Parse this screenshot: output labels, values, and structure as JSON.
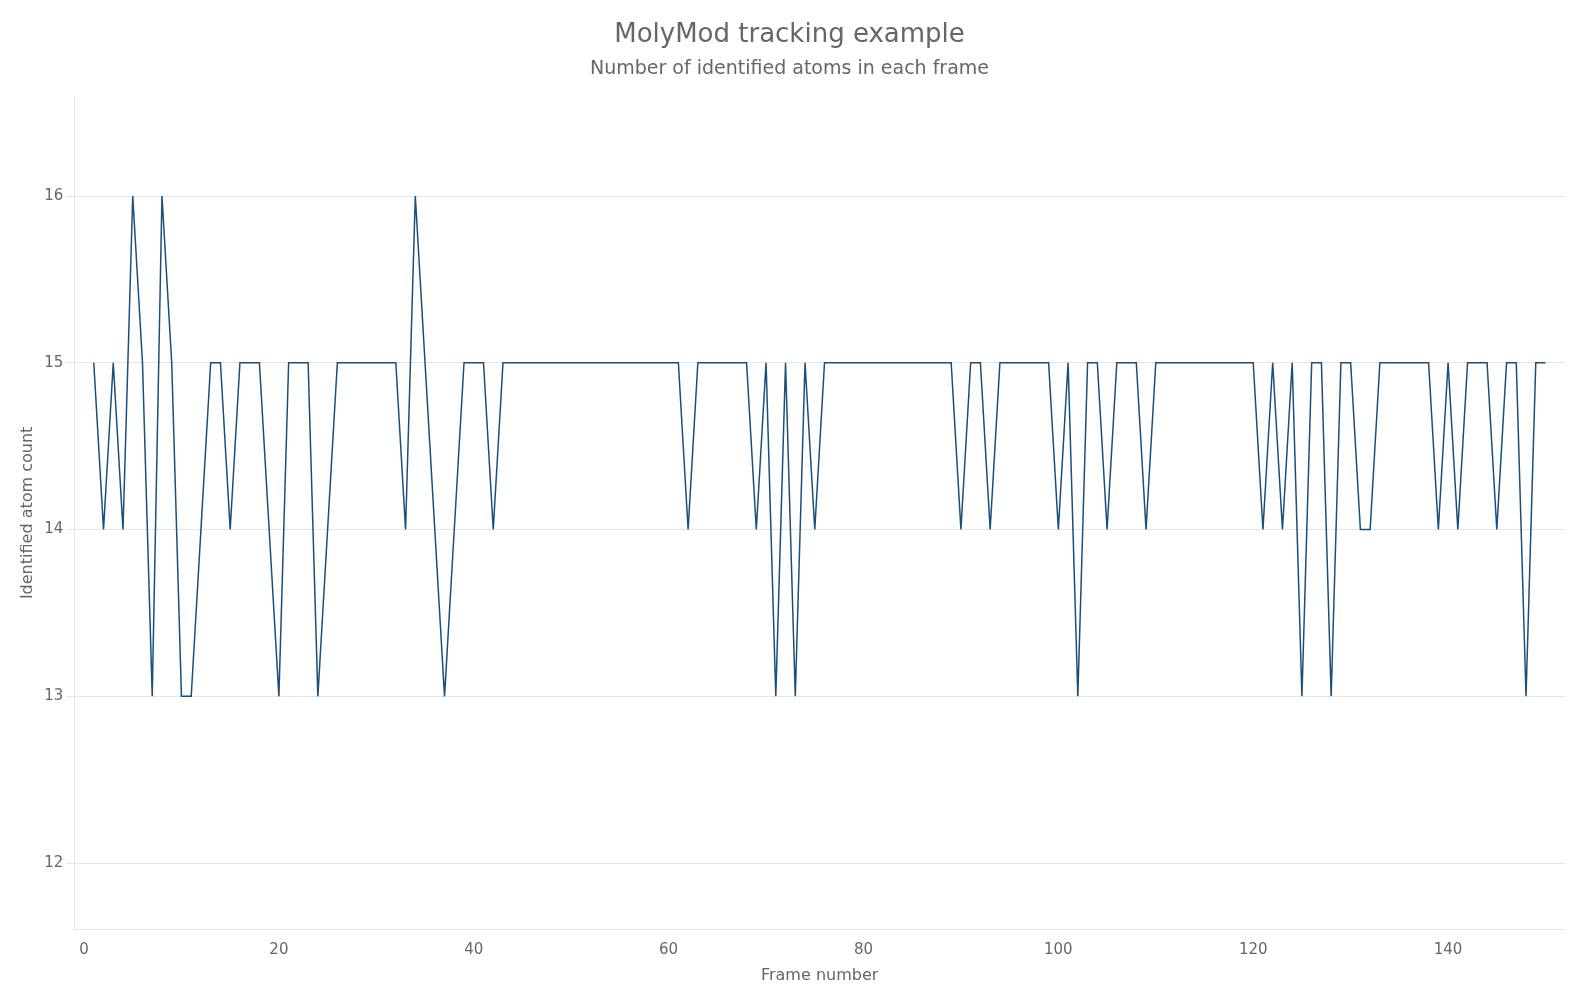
{
  "chart_data": {
    "type": "line",
    "title": "MolyMod tracking example",
    "subtitle": "Number of identified atoms in each frame",
    "xlabel": "Frame number",
    "ylabel": "Identified atom count",
    "color": "#1a4f7a",
    "grid": "y",
    "xlim": [
      -1,
      152
    ],
    "ylim": [
      11.6,
      16.6
    ],
    "xticks": [
      0,
      20,
      40,
      60,
      80,
      100,
      120,
      140
    ],
    "yticks": [
      12,
      13,
      14,
      15,
      16
    ],
    "x": [
      1,
      2,
      3,
      4,
      5,
      6,
      7,
      8,
      9,
      10,
      11,
      12,
      13,
      14,
      15,
      16,
      17,
      18,
      19,
      20,
      21,
      22,
      23,
      24,
      25,
      26,
      27,
      28,
      29,
      30,
      31,
      32,
      33,
      34,
      35,
      36,
      37,
      38,
      39,
      40,
      41,
      42,
      43,
      44,
      45,
      46,
      47,
      48,
      49,
      50,
      51,
      52,
      53,
      54,
      55,
      56,
      57,
      58,
      59,
      60,
      61,
      62,
      63,
      64,
      65,
      66,
      67,
      68,
      69,
      70,
      71,
      72,
      73,
      74,
      75,
      76,
      77,
      78,
      79,
      80,
      81,
      82,
      83,
      84,
      85,
      86,
      87,
      88,
      89,
      90,
      91,
      92,
      93,
      94,
      95,
      96,
      97,
      98,
      99,
      100,
      101,
      102,
      103,
      104,
      105,
      106,
      107,
      108,
      109,
      110,
      111,
      112,
      113,
      114,
      115,
      116,
      117,
      118,
      119,
      120,
      121,
      122,
      123,
      124,
      125,
      126,
      127,
      128,
      129,
      130,
      131,
      132,
      133,
      134,
      135,
      136,
      137,
      138,
      139,
      140,
      141,
      142,
      143,
      144,
      145,
      146,
      147,
      148,
      149,
      150
    ],
    "values": [
      15,
      14,
      15,
      14,
      16,
      15,
      13,
      16,
      15,
      13,
      13,
      14,
      15,
      15,
      14,
      15,
      15,
      15,
      14,
      13,
      15,
      15,
      15,
      13,
      14,
      15,
      15,
      15,
      15,
      15,
      15,
      15,
      14,
      16,
      15,
      14,
      13,
      14,
      15,
      15,
      15,
      14,
      15,
      15,
      15,
      15,
      15,
      15,
      15,
      15,
      15,
      15,
      15,
      15,
      15,
      15,
      15,
      15,
      15,
      15,
      15,
      14,
      15,
      15,
      15,
      15,
      15,
      15,
      14,
      15,
      13,
      15,
      13,
      15,
      14,
      15,
      15,
      15,
      15,
      15,
      15,
      15,
      15,
      15,
      15,
      15,
      15,
      15,
      15,
      14,
      15,
      15,
      14,
      15,
      15,
      15,
      15,
      15,
      15,
      14,
      15,
      13,
      15,
      15,
      14,
      15,
      15,
      15,
      14,
      15,
      15,
      15,
      15,
      15,
      15,
      15,
      15,
      15,
      15,
      15,
      14,
      15,
      14,
      15,
      13,
      15,
      15,
      13,
      15,
      15,
      14,
      14,
      15,
      15,
      15,
      15,
      15,
      15,
      14,
      15,
      14,
      15,
      15,
      15,
      14,
      15,
      15,
      13,
      15,
      15
    ]
  }
}
